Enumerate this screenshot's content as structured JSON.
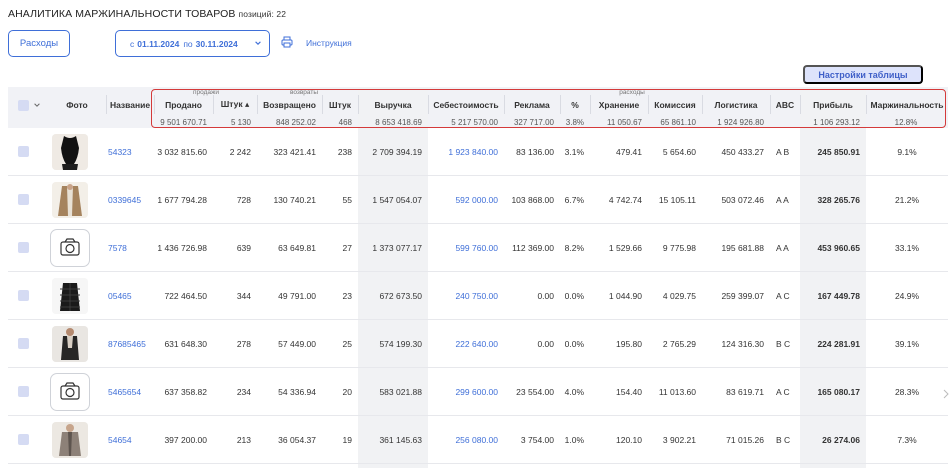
{
  "header": {
    "title": "АНАЛИТИКА МАРЖИНАЛЬНОСТИ ТОВАРОВ",
    "count_label": "позиций: 22"
  },
  "toolbar": {
    "expenses_label": "Расходы",
    "date_from_prefix": "с",
    "date_from": "01.11.2024",
    "date_to_prefix": "по",
    "date_to": "30.11.2024",
    "instruction_label": "Инструкция",
    "settings_label": "Настройки таблицы",
    "icons": [
      "chevron-down-icon",
      "printer-icon"
    ]
  },
  "colors": {
    "accent": "#3f6fd8",
    "highlight_frame": "#d43a3a",
    "settings_bg": "#dde3fb"
  },
  "groups": {
    "sales": "продажи",
    "returns": "возвраты",
    "expenses": "расходы"
  },
  "columns": {
    "photo": "Фото",
    "name": "Название",
    "sold": "Продано",
    "qty_sold": "Штук ▴",
    "returned": "Возвращено",
    "qty_returned": "Штук",
    "revenue": "Выручка",
    "cost": "Себестоимость",
    "ads": "Реклама",
    "ads_pct": "%",
    "storage": "Хранение",
    "commission": "Комиссия",
    "logistics": "Логистика",
    "abc": "ABC",
    "profit": "Прибыль",
    "margin": "Маржинальность"
  },
  "totals": {
    "sold": "9 501 670.71",
    "qty_sold": "5 130",
    "returned": "848 252.02",
    "qty_returned": "468",
    "revenue": "8 653 418.69",
    "cost": "5 217 570.00",
    "ads": "327 717.00",
    "ads_pct": "3.8%",
    "storage": "11 050.67",
    "commission": "65 861.10",
    "logistics": "1 924 926.80",
    "profit": "1 106 293.12",
    "margin": "12.8%"
  },
  "rows": [
    {
      "photo": "black-bodysuit-photo",
      "name": "54323",
      "sold": "3 032 815.60",
      "qty_sold": "2 242",
      "returned": "323 421.41",
      "qty_returned": "238",
      "revenue": "2 709 394.19",
      "cost": "1 923 840.00",
      "ads": "83 136.00",
      "ads_pct": "3.1%",
      "storage": "479.41",
      "commission": "5 654.60",
      "logistics": "450 433.27",
      "abc": "A B",
      "profit": "245 850.91",
      "margin": "9.1%"
    },
    {
      "photo": "beige-coat-photo",
      "name": "0339645",
      "sold": "1 677 794.28",
      "qty_sold": "728",
      "returned": "130 740.21",
      "qty_returned": "55",
      "revenue": "1 547 054.07",
      "cost": "592 000.00",
      "ads": "103 868.00",
      "ads_pct": "6.7%",
      "storage": "4 742.74",
      "commission": "15 105.11",
      "logistics": "503 072.46",
      "abc": "A A",
      "profit": "328 265.76",
      "margin": "21.2%"
    },
    {
      "photo": "camera-icon",
      "name": "7578",
      "sold": "1 436 726.98",
      "qty_sold": "639",
      "returned": "63 649.81",
      "qty_returned": "27",
      "revenue": "1 373 077.17",
      "cost": "599 760.00",
      "ads": "112 369.00",
      "ads_pct": "8.2%",
      "storage": "1 529.66",
      "commission": "9 775.98",
      "logistics": "195 681.88",
      "abc": "A A",
      "profit": "453 960.65",
      "margin": "33.1%"
    },
    {
      "photo": "black-vest-photo",
      "name": "05465",
      "sold": "722 464.50",
      "qty_sold": "344",
      "returned": "49 791.00",
      "qty_returned": "23",
      "revenue": "672 673.50",
      "cost": "240 750.00",
      "ads": "0.00",
      "ads_pct": "0.0%",
      "storage": "1 044.90",
      "commission": "4 029.75",
      "logistics": "259 399.07",
      "abc": "A C",
      "profit": "167 449.78",
      "margin": "24.9%"
    },
    {
      "photo": "dark-outfit-photo",
      "name": "87685465",
      "sold": "631 648.30",
      "qty_sold": "278",
      "returned": "57 449.00",
      "qty_returned": "25",
      "revenue": "574 199.30",
      "cost": "222 640.00",
      "ads": "0.00",
      "ads_pct": "0.0%",
      "storage": "195.80",
      "commission": "2 765.29",
      "logistics": "124 316.30",
      "abc": "B C",
      "profit": "224 281.91",
      "margin": "39.1%"
    },
    {
      "photo": "camera-icon",
      "name": "5465654",
      "sold": "637 358.82",
      "qty_sold": "234",
      "returned": "54 336.94",
      "qty_returned": "20",
      "revenue": "583 021.88",
      "cost": "299 600.00",
      "ads": "23 554.00",
      "ads_pct": "4.0%",
      "storage": "154.40",
      "commission": "11 013.60",
      "logistics": "83 619.71",
      "abc": "A C",
      "profit": "165 080.17",
      "margin": "28.3%"
    },
    {
      "photo": "grey-coat-photo",
      "name": "54654",
      "sold": "397 200.00",
      "qty_sold": "213",
      "returned": "36 054.37",
      "qty_returned": "19",
      "revenue": "361 145.63",
      "cost": "256 080.00",
      "ads": "3 754.00",
      "ads_pct": "1.0%",
      "storage": "120.10",
      "commission": "3 902.21",
      "logistics": "71 015.26",
      "abc": "B C",
      "profit": "26 274.06",
      "margin": "7.3%"
    }
  ]
}
